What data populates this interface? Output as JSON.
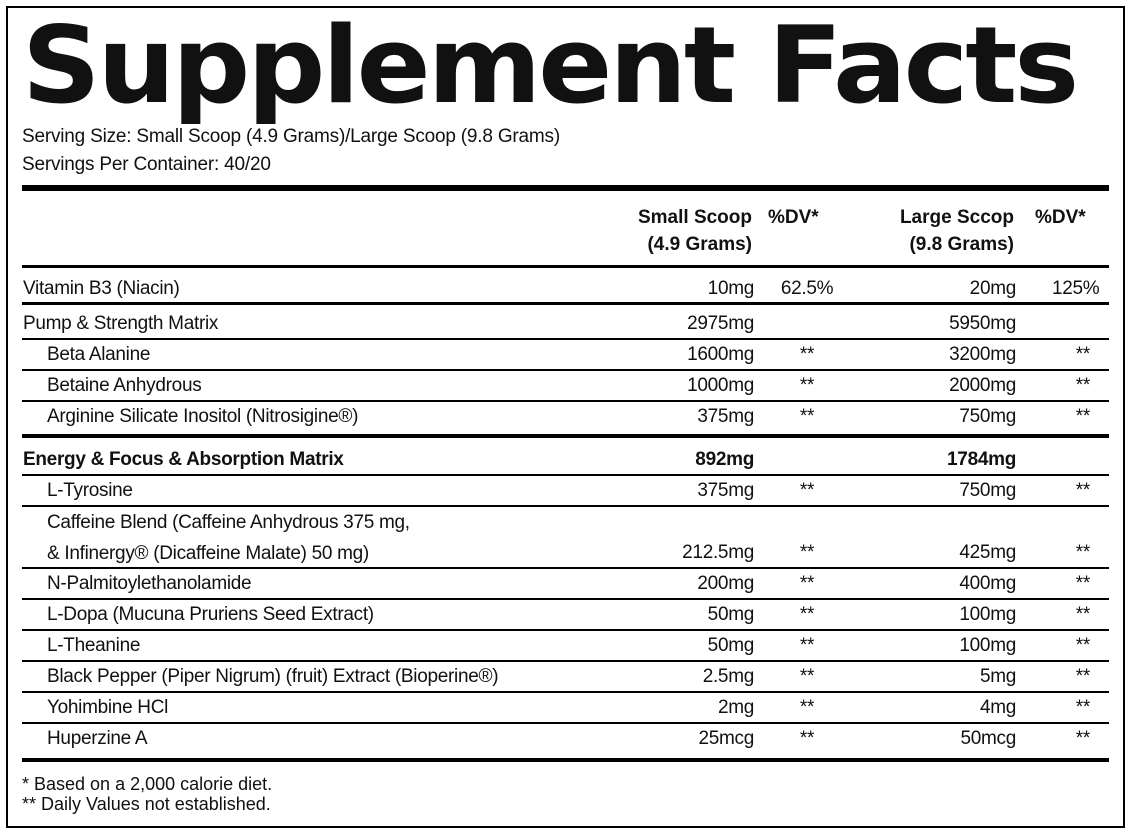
{
  "title": "Supplement Facts",
  "serving_size": "Serving Size: Small Scoop (4.9 Grams)/Large Scoop (9.8 Grams)",
  "servings_per_container": "Servings Per Container: 40/20",
  "headers": {
    "small_line1": "Small Scoop",
    "small_line2": "(4.9 Grams)",
    "dv1": "%DV*",
    "large_line1": "Large Sccop",
    "large_line2": "(9.8 Grams)",
    "dv2": "%DV*"
  },
  "rows": [
    {
      "name": "Vitamin B3 (Niacin)",
      "small": "10mg",
      "dv_small": "62.5%",
      "large": "20mg",
      "dv_large": "125%"
    },
    {
      "name": "Pump & Strength Matrix",
      "small": "2975mg",
      "dv_small": "",
      "large": "5950mg",
      "dv_large": ""
    },
    {
      "name": "Beta Alanine",
      "small": "1600mg",
      "dv_small": "**",
      "large": "3200mg",
      "dv_large": "**"
    },
    {
      "name": "Betaine Anhydrous",
      "small": "1000mg",
      "dv_small": "**",
      "large": "2000mg",
      "dv_large": "**"
    },
    {
      "name": "Arginine Silicate Inositol (Nitrosigine®)",
      "small": "375mg",
      "dv_small": "**",
      "large": "750mg",
      "dv_large": "**"
    },
    {
      "name": "Energy & Focus & Absorption Matrix",
      "small": "892mg",
      "dv_small": "",
      "large": "1784mg",
      "dv_large": ""
    },
    {
      "name": "L-Tyrosine",
      "small": "375mg",
      "dv_small": "**",
      "large": "750mg",
      "dv_large": "**"
    },
    {
      "name_line1": "Caffeine Blend (Caffeine Anhydrous 375 mg,",
      "name_line2": "& Infinergy® (Dicaffeine Malate) 50 mg)",
      "small": "212.5mg",
      "dv_small": "**",
      "large": "425mg",
      "dv_large": "**"
    },
    {
      "name": "N-Palmitoylethanolamide",
      "small": "200mg",
      "dv_small": "**",
      "large": "400mg",
      "dv_large": "**"
    },
    {
      "name": "L-Dopa (Mucuna Pruriens Seed Extract)",
      "small": "50mg",
      "dv_small": "**",
      "large": "100mg",
      "dv_large": "**"
    },
    {
      "name": "L-Theanine",
      "small": "50mg",
      "dv_small": "**",
      "large": "100mg",
      "dv_large": "**"
    },
    {
      "name": "Black Pepper (Piper Nigrum) (fruit) Extract (Bioperine®)",
      "small": "2.5mg",
      "dv_small": "**",
      "large": "5mg",
      "dv_large": "**"
    },
    {
      "name": "Yohimbine HCl",
      "small": "2mg",
      "dv_small": "**",
      "large": "4mg",
      "dv_large": "**"
    },
    {
      "name": "Huperzine A",
      "small": "25mcg",
      "dv_small": "**",
      "large": "50mcg",
      "dv_large": "**"
    }
  ],
  "footnotes": {
    "dv": "* Based on a 2,000 calorie diet.",
    "not_established": "** Daily Values not established."
  }
}
